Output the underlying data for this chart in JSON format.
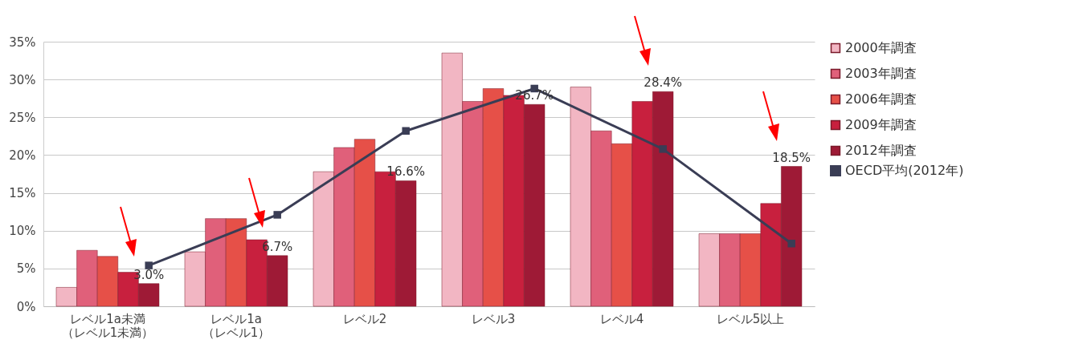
{
  "chart_data": {
    "type": "bar",
    "categories": [
      "レベル1a未満（レベル1未満）",
      "レベル1a（レベル1）",
      "レベル2",
      "レベル3",
      "レベル4",
      "レベル5以上"
    ],
    "series": [
      {
        "name": "2000年調査",
        "color": "#f2b6c3",
        "values": [
          2.5,
          7.2,
          17.8,
          33.5,
          29.0,
          9.6
        ]
      },
      {
        "name": "2003年調査",
        "color": "#e0607a",
        "values": [
          7.4,
          11.6,
          21.0,
          27.1,
          23.2,
          9.6
        ]
      },
      {
        "name": "2006年調査",
        "color": "#e65048",
        "values": [
          6.6,
          11.6,
          22.1,
          28.8,
          21.5,
          9.6
        ]
      },
      {
        "name": "2009年調査",
        "color": "#c8203e",
        "values": [
          4.5,
          8.8,
          17.8,
          27.9,
          27.1,
          13.6
        ]
      },
      {
        "name": "2012年調査",
        "color": "#9e1a36",
        "values": [
          3.0,
          6.7,
          16.6,
          26.7,
          28.4,
          18.5
        ],
        "value_labels": [
          "3.0%",
          "6.7%",
          "16.6%",
          "26.7%",
          "28.4%",
          "18.5%"
        ]
      },
      {
        "name": "OECD平均(2012年)",
        "type": "line",
        "color": "#3a3d55",
        "values": [
          5.4,
          12.1,
          23.2,
          28.8,
          20.8,
          8.3
        ]
      }
    ],
    "marker": "square",
    "ylim": [
      0,
      35
    ],
    "yticks": [
      {
        "value": 0,
        "label": "0%"
      },
      {
        "value": 5,
        "label": "5%"
      },
      {
        "value": 10,
        "label": "10%"
      },
      {
        "value": 15,
        "label": "15%"
      },
      {
        "value": 20,
        "label": "20%"
      },
      {
        "value": 25,
        "label": "25%"
      },
      {
        "value": 30,
        "label": "30%"
      },
      {
        "value": 35,
        "label": "35%"
      }
    ],
    "grid": "y",
    "legend": "right"
  }
}
